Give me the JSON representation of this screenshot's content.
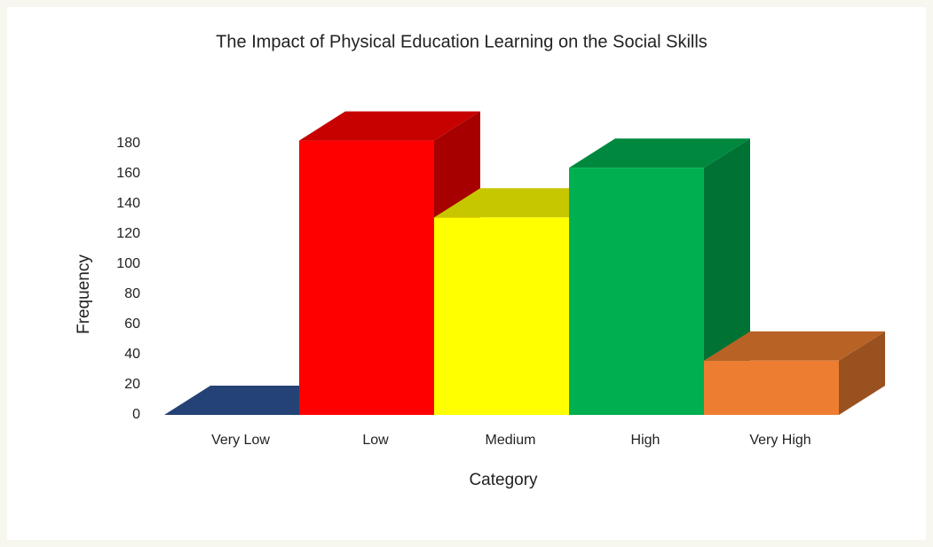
{
  "chart_data": {
    "type": "bar3d",
    "title": "The Impact of Physical Education Learning on the Social Skills",
    "x_label": "Category",
    "y_label": "Frequency",
    "categories": [
      "Very Low",
      "Low",
      "Medium",
      "High",
      "Very High"
    ],
    "values": [
      0,
      182,
      131,
      164,
      36
    ],
    "colors": [
      "#2f5597",
      "#ff0000",
      "#ffff00",
      "#00b050",
      "#ed7d31"
    ],
    "ylim": [
      0,
      180
    ],
    "yticks": [
      0,
      20,
      40,
      60,
      80,
      100,
      120,
      140,
      160,
      180
    ]
  }
}
